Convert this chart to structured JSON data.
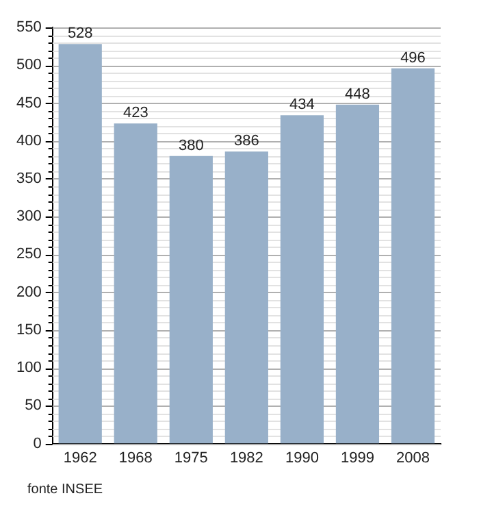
{
  "chart_data": {
    "type": "bar",
    "categories": [
      "1962",
      "1968",
      "1975",
      "1982",
      "1990",
      "1999",
      "2008"
    ],
    "values": [
      528,
      423,
      380,
      386,
      434,
      448,
      496
    ],
    "color": "#98b0c9",
    "ylim": [
      0,
      550
    ],
    "yticks": [
      0,
      50,
      100,
      150,
      200,
      250,
      300,
      350,
      400,
      450,
      500,
      550
    ],
    "grid": "y",
    "data_labels": true,
    "annotations": [
      "fonte INSEE"
    ]
  }
}
